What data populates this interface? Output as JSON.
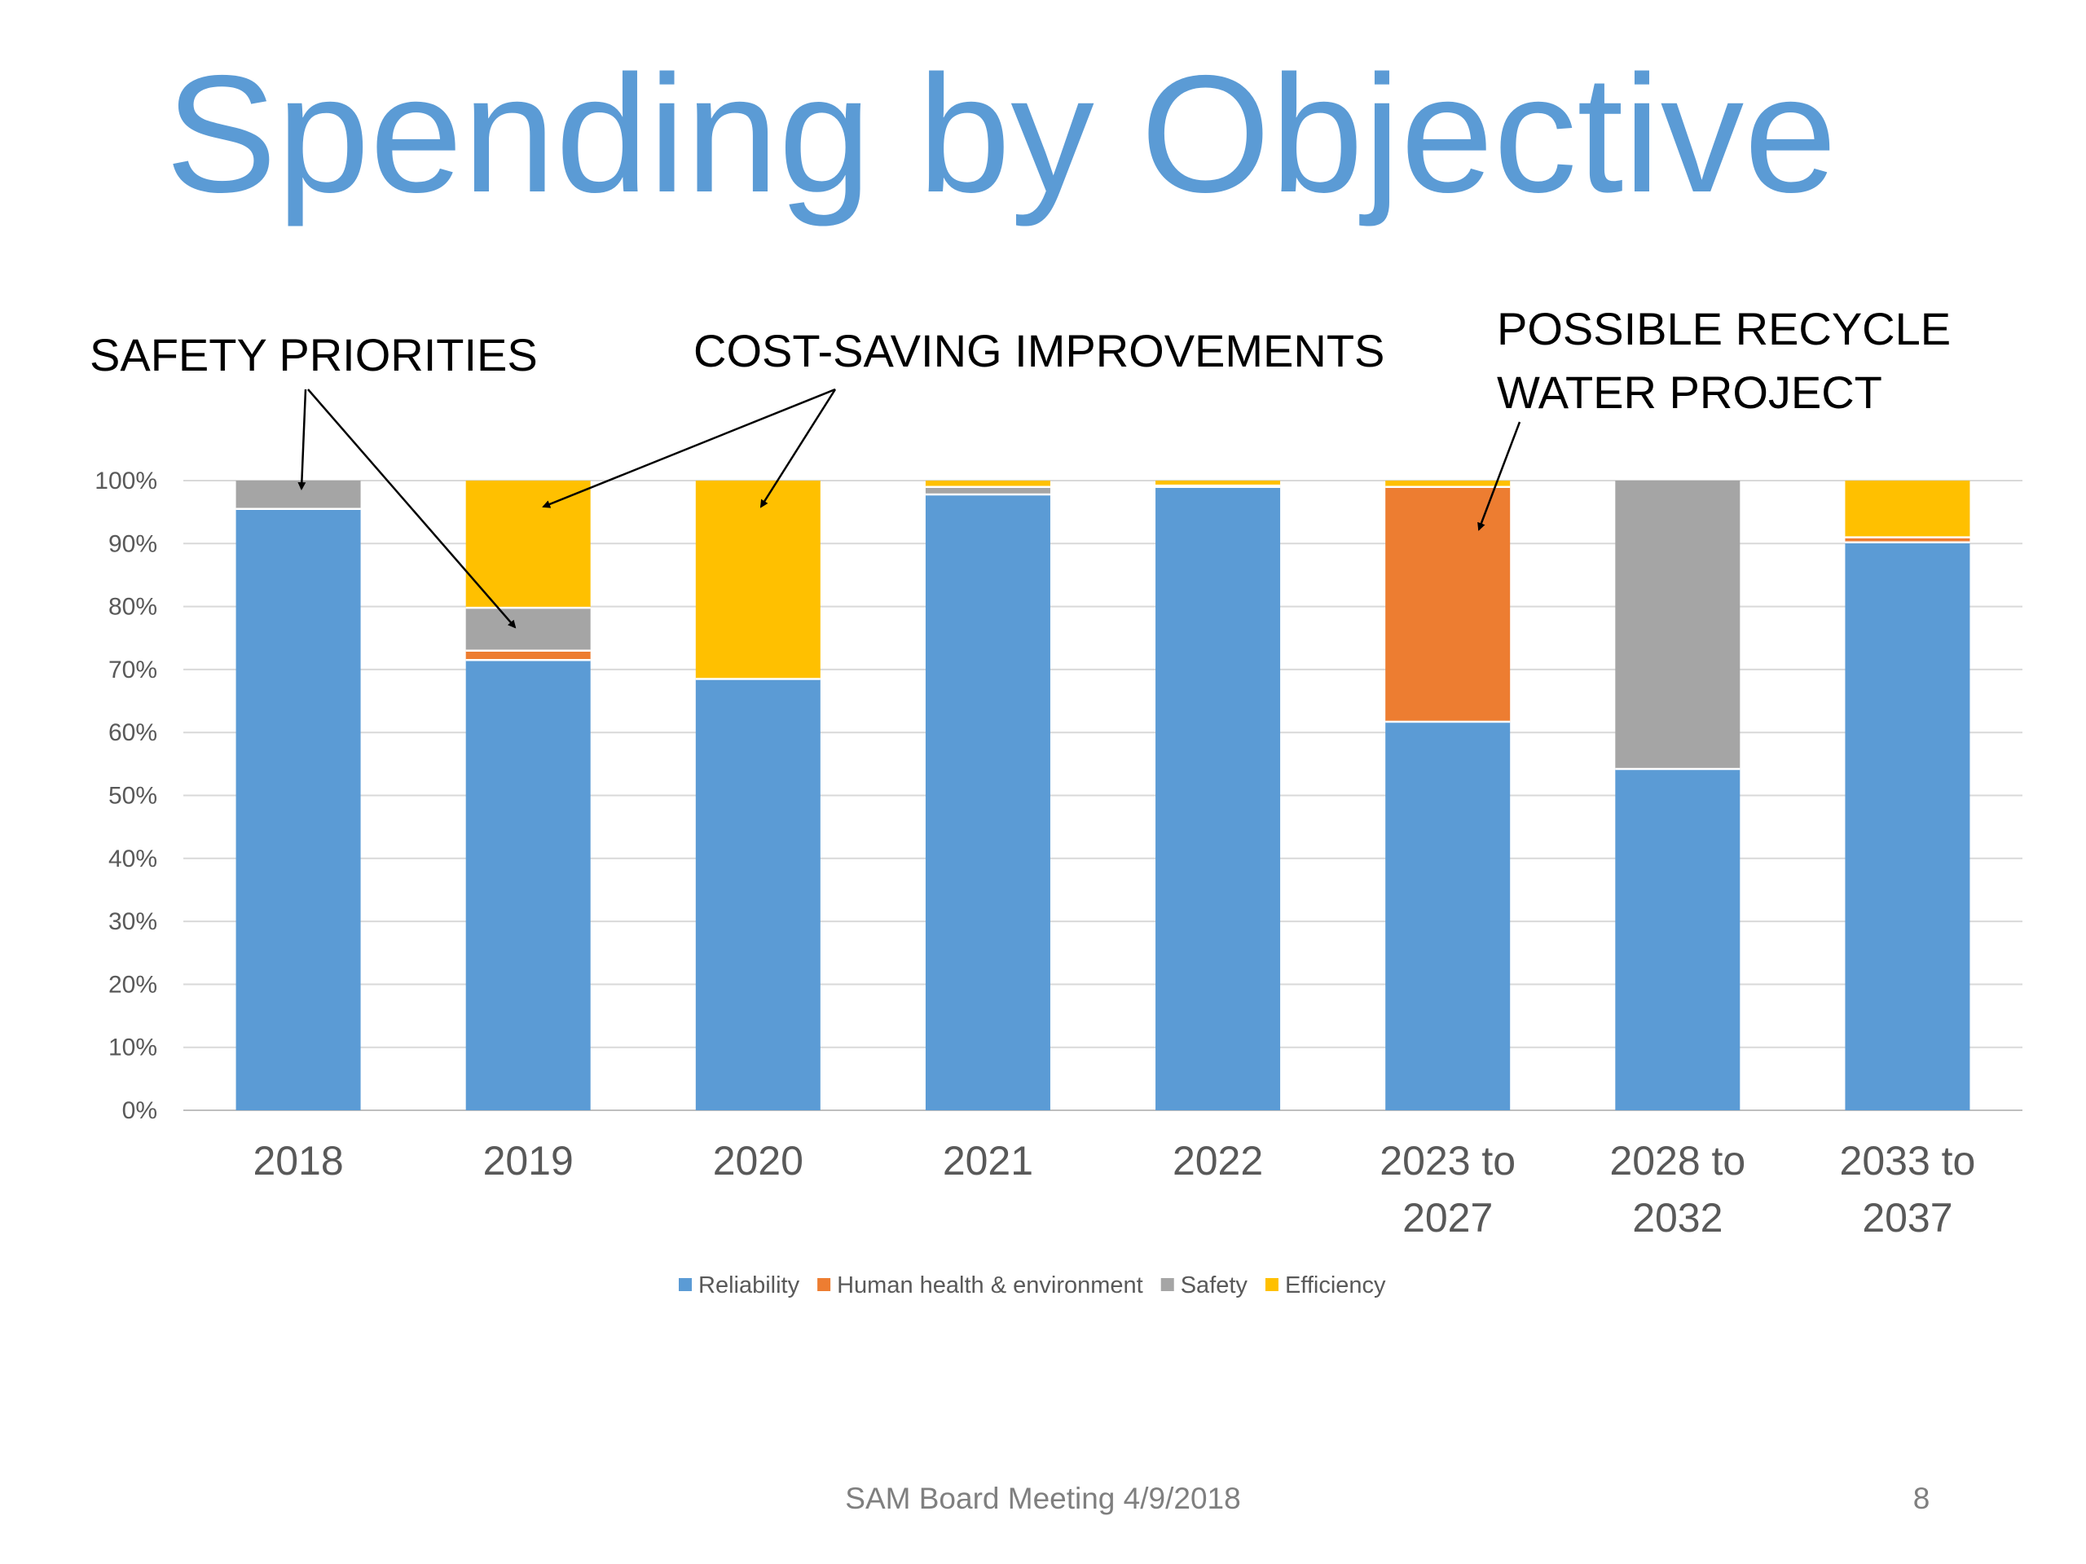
{
  "slide": {
    "title": "Spending by Objective",
    "footer": "SAM Board Meeting 4/9/2018",
    "page_number": "8"
  },
  "annotations": [
    {
      "id": "safety",
      "lines": [
        "SAFETY PRIORITIES"
      ]
    },
    {
      "id": "cost",
      "lines": [
        "COST-SAVING IMPROVEMENTS"
      ]
    },
    {
      "id": "recycle",
      "lines": [
        "POSSIBLE RECYCLE",
        "WATER PROJECT"
      ]
    }
  ],
  "chart_data": {
    "type": "bar",
    "stacked": true,
    "percent": true,
    "categories": [
      [
        "2018"
      ],
      [
        "2019"
      ],
      [
        "2020"
      ],
      [
        "2021"
      ],
      [
        "2022"
      ],
      [
        "2023 to",
        "2027"
      ],
      [
        "2028 to",
        "2032"
      ],
      [
        "2033 to",
        "2037"
      ]
    ],
    "yticks": [
      "0%",
      "10%",
      "20%",
      "30%",
      "40%",
      "50%",
      "60%",
      "70%",
      "80%",
      "90%",
      "100%"
    ],
    "ylim": [
      0,
      100
    ],
    "grid": true,
    "legend_position": "bottom",
    "series": [
      {
        "name": "Reliability",
        "color": "#5b9bd5",
        "values": [
          95.5,
          71.5,
          68.5,
          97.8,
          99.0,
          61.7,
          54.2,
          90.2
        ]
      },
      {
        "name": "Human health & environment",
        "color": "#ed7d31",
        "values": [
          0,
          1.5,
          0,
          0,
          0,
          37.3,
          0,
          0.8
        ]
      },
      {
        "name": "Safety",
        "color": "#a5a5a5",
        "values": [
          4.5,
          6.8,
          0,
          1.2,
          0.2,
          0,
          45.8,
          0
        ]
      },
      {
        "name": "Efficiency",
        "color": "#ffc000",
        "values": [
          0,
          20.2,
          31.5,
          1.0,
          0.8,
          1.0,
          0,
          9.0
        ]
      }
    ]
  }
}
